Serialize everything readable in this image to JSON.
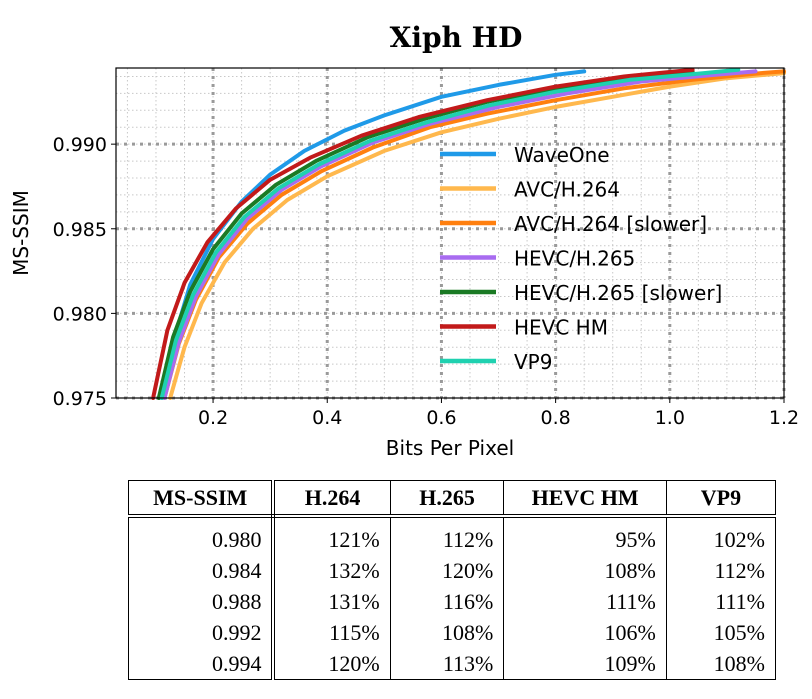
{
  "chart_data": {
    "type": "line",
    "title": "Xiph HD",
    "xlabel": "Bits Per Pixel",
    "ylabel": "MS-SSIM",
    "xlim": [
      0.03,
      1.2
    ],
    "ylim": [
      0.975,
      0.9945
    ],
    "xticks": [
      0.2,
      0.4,
      0.6,
      0.8,
      1.0,
      1.2
    ],
    "xtick_labels": [
      "0.2",
      "0.4",
      "0.6",
      "0.8",
      "1.0",
      "1.2"
    ],
    "yticks": [
      0.975,
      0.98,
      0.985,
      0.99
    ],
    "ytick_labels": [
      "0.975",
      "0.980",
      "0.985",
      "0.990"
    ],
    "grid": true,
    "legend_position": "center-right",
    "series": [
      {
        "name": "WaveOne",
        "color": "#1f9ae8",
        "x": [
          0.11,
          0.13,
          0.16,
          0.2,
          0.25,
          0.3,
          0.36,
          0.43,
          0.5,
          0.6,
          0.7,
          0.8,
          0.85
        ],
        "y": [
          0.975,
          0.9783,
          0.9817,
          0.9844,
          0.9866,
          0.9882,
          0.9896,
          0.9908,
          0.9917,
          0.9928,
          0.9935,
          0.9941,
          0.9943
        ]
      },
      {
        "name": "AVC/H.264",
        "color": "#ffb84d",
        "x": [
          0.125,
          0.15,
          0.18,
          0.22,
          0.27,
          0.33,
          0.4,
          0.5,
          0.6,
          0.7,
          0.8,
          0.9,
          1.0,
          1.1,
          1.2
        ],
        "y": [
          0.975,
          0.978,
          0.9806,
          0.983,
          0.985,
          0.9867,
          0.9881,
          0.9896,
          0.9907,
          0.9915,
          0.9922,
          0.9928,
          0.9934,
          0.9939,
          0.9942
        ]
      },
      {
        "name": "AVC/H.264 [slower]",
        "color": "#ff7f0e",
        "x": [
          0.115,
          0.14,
          0.17,
          0.21,
          0.26,
          0.32,
          0.39,
          0.48,
          0.58,
          0.68,
          0.8,
          0.92,
          1.04,
          1.16,
          1.2
        ],
        "y": [
          0.975,
          0.9782,
          0.9808,
          0.9833,
          0.9853,
          0.987,
          0.9884,
          0.9898,
          0.991,
          0.9918,
          0.9926,
          0.9933,
          0.9938,
          0.9942,
          0.9943
        ]
      },
      {
        "name": "HEVC/H.265",
        "color": "#a86cf0",
        "x": [
          0.115,
          0.14,
          0.17,
          0.21,
          0.26,
          0.32,
          0.39,
          0.48,
          0.58,
          0.7,
          0.82,
          0.95,
          1.08,
          1.15
        ],
        "y": [
          0.975,
          0.9783,
          0.981,
          0.9835,
          0.9856,
          0.9873,
          0.9887,
          0.9901,
          0.9912,
          0.9922,
          0.993,
          0.9937,
          0.9941,
          0.9943
        ]
      },
      {
        "name": "HEVC/H.265 [slower]",
        "color": "#1a7a24",
        "x": [
          0.105,
          0.13,
          0.16,
          0.2,
          0.25,
          0.31,
          0.38,
          0.47,
          0.57,
          0.68,
          0.8,
          0.92,
          1.04
        ],
        "y": [
          0.975,
          0.9786,
          0.9813,
          0.9838,
          0.9859,
          0.9876,
          0.989,
          0.9904,
          0.9915,
          0.9925,
          0.9933,
          0.9939,
          0.9943
        ]
      },
      {
        "name": "HEVC HM",
        "color": "#c21a1a",
        "x": [
          0.095,
          0.12,
          0.15,
          0.19,
          0.24,
          0.3,
          0.37,
          0.46,
          0.56,
          0.68,
          0.8,
          0.92,
          1.04
        ],
        "y": [
          0.975,
          0.979,
          0.9818,
          0.9842,
          0.9862,
          0.9879,
          0.9892,
          0.9905,
          0.9916,
          0.9926,
          0.9934,
          0.994,
          0.9944
        ]
      },
      {
        "name": "VP9",
        "color": "#1fd1b0",
        "x": [
          0.11,
          0.135,
          0.165,
          0.205,
          0.255,
          0.315,
          0.385,
          0.475,
          0.575,
          0.685,
          0.8,
          0.93,
          1.06,
          1.12
        ],
        "y": [
          0.975,
          0.9784,
          0.9811,
          0.9836,
          0.9857,
          0.9874,
          0.9888,
          0.9902,
          0.9913,
          0.9923,
          0.9931,
          0.9938,
          0.9942,
          0.9944
        ]
      }
    ]
  },
  "table": {
    "headers": [
      "MS-SSIM",
      "H.264",
      "H.265",
      "HEVC HM",
      "VP9"
    ],
    "rows": [
      [
        "0.980",
        "121%",
        "112%",
        "95%",
        "102%"
      ],
      [
        "0.984",
        "132%",
        "120%",
        "108%",
        "112%"
      ],
      [
        "0.988",
        "131%",
        "116%",
        "111%",
        "111%"
      ],
      [
        "0.992",
        "115%",
        "108%",
        "106%",
        "105%"
      ],
      [
        "0.994",
        "120%",
        "113%",
        "109%",
        "108%"
      ]
    ]
  }
}
